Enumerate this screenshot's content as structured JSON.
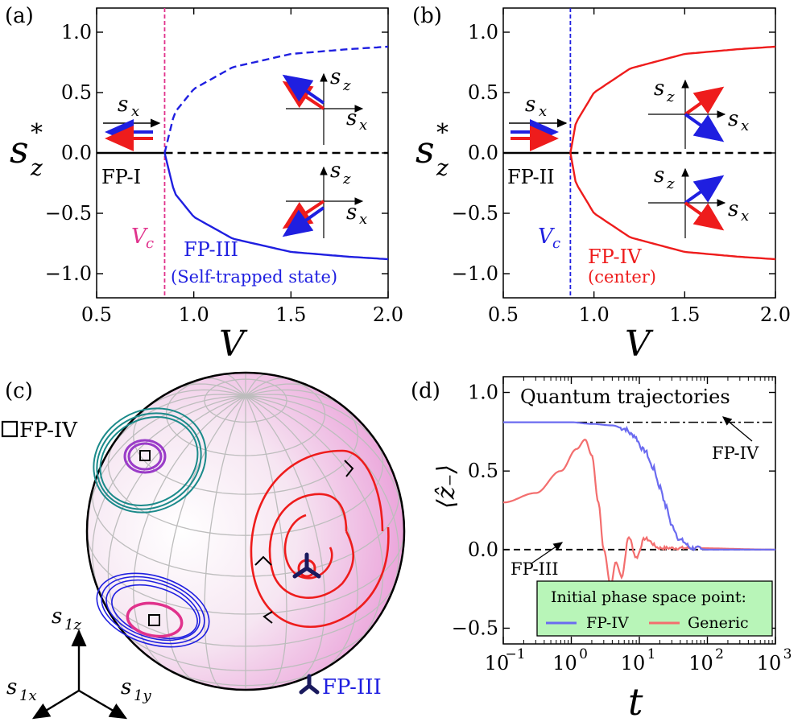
{
  "colors": {
    "blue": "#1f1fe0",
    "red": "#ee1c1c",
    "pink": "#e0328c",
    "teal": "#1b8a8a",
    "purple": "#9a3cc8",
    "mag": "#e0328c",
    "fpiv": "#6b6bf0",
    "generic": "#f36e6e",
    "legend_bg": "#b8f5b8"
  },
  "panel_a": {
    "label": "(a)",
    "xlabel": "V",
    "ylabel": "s",
    "ysub": "z",
    "ysup": "*",
    "xticks": [
      "0.5",
      "1.0",
      "1.5",
      "2.0"
    ],
    "yticks": [
      "1.0",
      "0.5",
      "0.0",
      "−0.5",
      "−1.0"
    ],
    "fp_left": "FP-I",
    "vc_main": "V",
    "vc_sub": "c",
    "fp_right": "FP-III",
    "fp_right_note": "(Self-trapped state)",
    "sx_main": "s",
    "sx_sub": "x",
    "sz_main": "s",
    "sz_sub": "z"
  },
  "panel_b": {
    "label": "(b)",
    "xlabel": "V",
    "ylabel": "s",
    "ysub": "z",
    "ysup": "*",
    "xticks": [
      "0.5",
      "1.0",
      "1.5",
      "2.0"
    ],
    "yticks": [
      "1.0",
      "0.5",
      "0.0",
      "−0.5",
      "−1.0"
    ],
    "fp_left": "FP-II",
    "vc_main": "V",
    "vc_sub": "c",
    "fp_right": "FP-IV",
    "fp_right_note": "(center)",
    "sx_main": "s",
    "sx_sub": "x",
    "sz_main": "s",
    "sz_sub": "z"
  },
  "panel_c": {
    "label": "(c)",
    "fp_iv": "FP-IV",
    "fp_iii": "FP-III",
    "axes": [
      {
        "main": "s",
        "sub": "1z"
      },
      {
        "main": "s",
        "sub": "1x"
      },
      {
        "main": "s",
        "sub": "1y"
      }
    ]
  },
  "panel_d": {
    "label": "(d)",
    "title": "Quantum trajectories",
    "xlabel": "t",
    "ylabel": "⟨ẑ₋⟩",
    "yticks": [
      "1.0",
      "0.5",
      "0.0",
      "−0.5"
    ],
    "xticks": [
      {
        "base": "10",
        "exp": "−1"
      },
      {
        "base": "10",
        "exp": "0"
      },
      {
        "base": "10",
        "exp": "1"
      },
      {
        "base": "10",
        "exp": "2"
      },
      {
        "base": "10",
        "exp": "3"
      }
    ],
    "fp_iv_label": "FP-IV",
    "fp_iii_label": "FP-III",
    "legend": {
      "title": "Initial phase space point:",
      "entries": [
        "FP-IV",
        "Generic"
      ]
    }
  },
  "chart_data": [
    {
      "type": "line",
      "panel": "a",
      "xlabel": "V",
      "ylabel": "s_z^*",
      "xlim": [
        0.5,
        2.0
      ],
      "ylim": [
        -1.2,
        1.2
      ],
      "vc": 0.85,
      "series": [
        {
          "name": "FP-I stable",
          "style": "solid",
          "x": [
            0.5,
            0.85
          ],
          "y": [
            0,
            0
          ]
        },
        {
          "name": "FP-I unstable",
          "style": "dashed",
          "x": [
            0.85,
            2.0
          ],
          "y": [
            0,
            0
          ]
        },
        {
          "name": "FP-III upper",
          "style": "dashed",
          "x": [
            0.85,
            0.9,
            1.0,
            1.2,
            1.5,
            1.8,
            2.0
          ],
          "y": [
            0,
            0.33,
            0.53,
            0.71,
            0.82,
            0.86,
            0.88
          ]
        },
        {
          "name": "FP-III lower",
          "style": "solid",
          "x": [
            0.85,
            0.9,
            1.0,
            1.2,
            1.5,
            1.8,
            2.0
          ],
          "y": [
            0,
            -0.33,
            -0.53,
            -0.71,
            -0.82,
            -0.86,
            -0.88
          ]
        }
      ]
    },
    {
      "type": "line",
      "panel": "b",
      "xlabel": "V",
      "ylabel": "s_z^*",
      "xlim": [
        0.5,
        2.0
      ],
      "ylim": [
        -1.2,
        1.2
      ],
      "vc": 0.87,
      "series": [
        {
          "name": "FP-II stable",
          "style": "solid",
          "x": [
            0.5,
            0.87
          ],
          "y": [
            0,
            0
          ]
        },
        {
          "name": "FP-II unstable",
          "style": "dashed",
          "x": [
            0.87,
            2.0
          ],
          "y": [
            0,
            0
          ]
        },
        {
          "name": "FP-IV upper",
          "style": "solid",
          "x": [
            0.87,
            0.9,
            1.0,
            1.2,
            1.5,
            1.8,
            2.0
          ],
          "y": [
            0,
            0.25,
            0.5,
            0.7,
            0.82,
            0.86,
            0.88
          ]
        },
        {
          "name": "FP-IV lower",
          "style": "solid",
          "x": [
            0.87,
            0.9,
            1.0,
            1.2,
            1.5,
            1.8,
            2.0
          ],
          "y": [
            0,
            -0.25,
            -0.5,
            -0.7,
            -0.82,
            -0.86,
            -0.88
          ]
        }
      ]
    },
    {
      "type": "line",
      "panel": "d",
      "xlabel": "t",
      "ylabel": "<z_->",
      "xscale": "log",
      "xlim": [
        0.1,
        1000
      ],
      "ylim": [
        -0.6,
        1.1
      ],
      "series": [
        {
          "name": "FP-IV",
          "x": [
            0.1,
            1,
            2,
            4,
            6,
            8,
            12,
            16,
            20,
            25,
            30,
            40,
            60,
            100,
            1000
          ],
          "y": [
            0.81,
            0.81,
            0.8,
            0.79,
            0.77,
            0.73,
            0.63,
            0.52,
            0.4,
            0.27,
            0.15,
            0.06,
            0.01,
            0,
            0
          ]
        },
        {
          "name": "Generic",
          "x": [
            0.1,
            0.3,
            0.7,
            1.2,
            1.6,
            2.0,
            2.5,
            3.0,
            3.8,
            4.5,
            5.5,
            7,
            9,
            12,
            20,
            50,
            1000
          ],
          "y": [
            0.3,
            0.36,
            0.5,
            0.64,
            0.7,
            0.6,
            0.3,
            0.0,
            -0.23,
            -0.08,
            -0.17,
            0.08,
            -0.05,
            0.07,
            0.01,
            0.01,
            0
          ]
        },
        {
          "name": "FP-IV ref",
          "style": "dashdot",
          "x": [
            0.1,
            1000
          ],
          "y": [
            0.81,
            0.81
          ]
        },
        {
          "name": "FP-III ref",
          "style": "dashed",
          "x": [
            0.1,
            1000
          ],
          "y": [
            0,
            0
          ]
        }
      ]
    }
  ]
}
